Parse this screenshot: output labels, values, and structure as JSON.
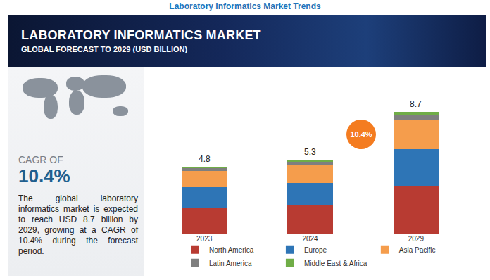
{
  "page": {
    "heading": "Laboratory Informatics Market Trends",
    "banner_title": "LABORATORY INFORMATICS MARKET",
    "banner_subtitle": "GLOBAL FORECAST TO 2029 (USD BILLION)",
    "cagr_caption": "CAGR OF",
    "cagr_value": "10.4%",
    "description": "The global laboratory informatics market is expected to reach USD 8.7 billion by 2029, growing at a CAGR of 10.4% during the forecast period."
  },
  "chart_data": {
    "type": "bar",
    "stacked": true,
    "categories": [
      "2023",
      "2024",
      "2029"
    ],
    "series": [
      {
        "name": "North America",
        "color": "#b83b32",
        "values": [
          1.85,
          2.05,
          3.43
        ]
      },
      {
        "name": "Europe",
        "color": "#2e75b6",
        "values": [
          1.47,
          1.57,
          2.6
        ]
      },
      {
        "name": "Asia Pacific",
        "color": "#f59d4c",
        "values": [
          1.13,
          1.27,
          2.1
        ]
      },
      {
        "name": "Latin America",
        "color": "#7f7f7f",
        "values": [
          0.2,
          0.25,
          0.3
        ]
      },
      {
        "name": "Middle East & Africa",
        "color": "#70ad47",
        "values": [
          0.15,
          0.16,
          0.27
        ]
      }
    ],
    "totals": [
      4.8,
      5.3,
      8.7
    ],
    "annotation": "10.4%",
    "ylim": [
      0,
      9.5
    ],
    "yticks": [],
    "grid": false,
    "legend": "bottom",
    "tick_labels": "x"
  }
}
